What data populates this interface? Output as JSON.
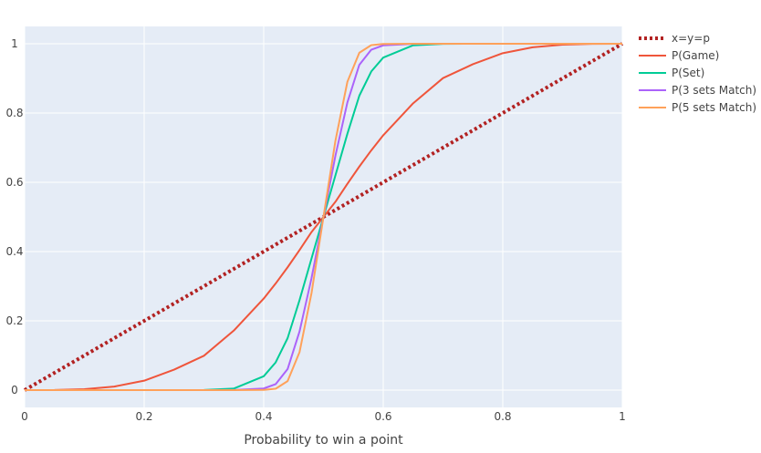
{
  "chart_data": {
    "type": "line",
    "title": "",
    "xlabel": "Probability to win a point",
    "ylabel": "",
    "xlim": [
      0,
      1
    ],
    "ylim": [
      -0.05,
      1.05
    ],
    "grid": true,
    "legend_position": "top-right",
    "x_ticks": [
      0,
      0.2,
      0.4,
      0.6,
      0.8,
      1
    ],
    "x_tick_labels": [
      "0",
      "0.2",
      "0.4",
      "0.6",
      "0.8",
      "1"
    ],
    "y_ticks": [
      0,
      0.2,
      0.4,
      0.6,
      0.8,
      1
    ],
    "y_tick_labels": [
      "0",
      "0.2",
      "0.4",
      "0.6",
      "0.8",
      "1"
    ],
    "x": [
      0,
      0.05,
      0.1,
      0.15,
      0.2,
      0.25,
      0.3,
      0.35,
      0.4,
      0.42,
      0.44,
      0.46,
      0.48,
      0.5,
      0.52,
      0.54,
      0.56,
      0.58,
      0.6,
      0.65,
      0.7,
      0.75,
      0.8,
      0.85,
      0.9,
      0.95,
      1
    ],
    "series": [
      {
        "name": "x=y=p",
        "color": "#b22222",
        "dash": "dot",
        "values": [
          0,
          0.05,
          0.1,
          0.15,
          0.2,
          0.25,
          0.3,
          0.35,
          0.4,
          0.42,
          0.44,
          0.46,
          0.48,
          0.5,
          0.52,
          0.54,
          0.56,
          0.58,
          0.6,
          0.65,
          0.7,
          0.75,
          0.8,
          0.85,
          0.9,
          0.95,
          1
        ]
      },
      {
        "name": "P(Game)",
        "color": "#ef553b",
        "dash": "solid",
        "values": [
          0,
          0.0004,
          0.0027,
          0.0102,
          0.0272,
          0.0591,
          0.0992,
          0.172,
          0.2643,
          0.3078,
          0.3546,
          0.4045,
          0.4563,
          0.5,
          0.5437,
          0.5955,
          0.6454,
          0.6922,
          0.7357,
          0.828,
          0.9008,
          0.9409,
          0.9728,
          0.9898,
          0.9973,
          0.9996,
          1
        ]
      },
      {
        "name": "P(Set)",
        "color": "#00cc96",
        "dash": "solid",
        "values": [
          0,
          0,
          0,
          0,
          0,
          0,
          0.0003,
          0.0045,
          0.04,
          0.08,
          0.15,
          0.26,
          0.38,
          0.5,
          0.62,
          0.74,
          0.85,
          0.92,
          0.96,
          0.9955,
          0.9997,
          1,
          1,
          1,
          1,
          1,
          1
        ]
      },
      {
        "name": "P(3 sets Match)",
        "color": "#ab63fa",
        "dash": "solid",
        "values": [
          0,
          0,
          0,
          0,
          0,
          0,
          0,
          0.0003,
          0.0046,
          0.0172,
          0.0608,
          0.1696,
          0.3232,
          0.5,
          0.6768,
          0.8304,
          0.9392,
          0.9828,
          0.9954,
          0.9997,
          1,
          1,
          1,
          1,
          1,
          1,
          1
        ]
      },
      {
        "name": "P(5 sets Match)",
        "color": "#ffa15a",
        "dash": "solid",
        "values": [
          0,
          0,
          0,
          0,
          0,
          0,
          0,
          0,
          0.0006,
          0.004,
          0.026,
          0.11,
          0.28,
          0.5,
          0.72,
          0.89,
          0.974,
          0.996,
          0.9994,
          1,
          1,
          1,
          1,
          1,
          1,
          1,
          1
        ]
      }
    ]
  }
}
